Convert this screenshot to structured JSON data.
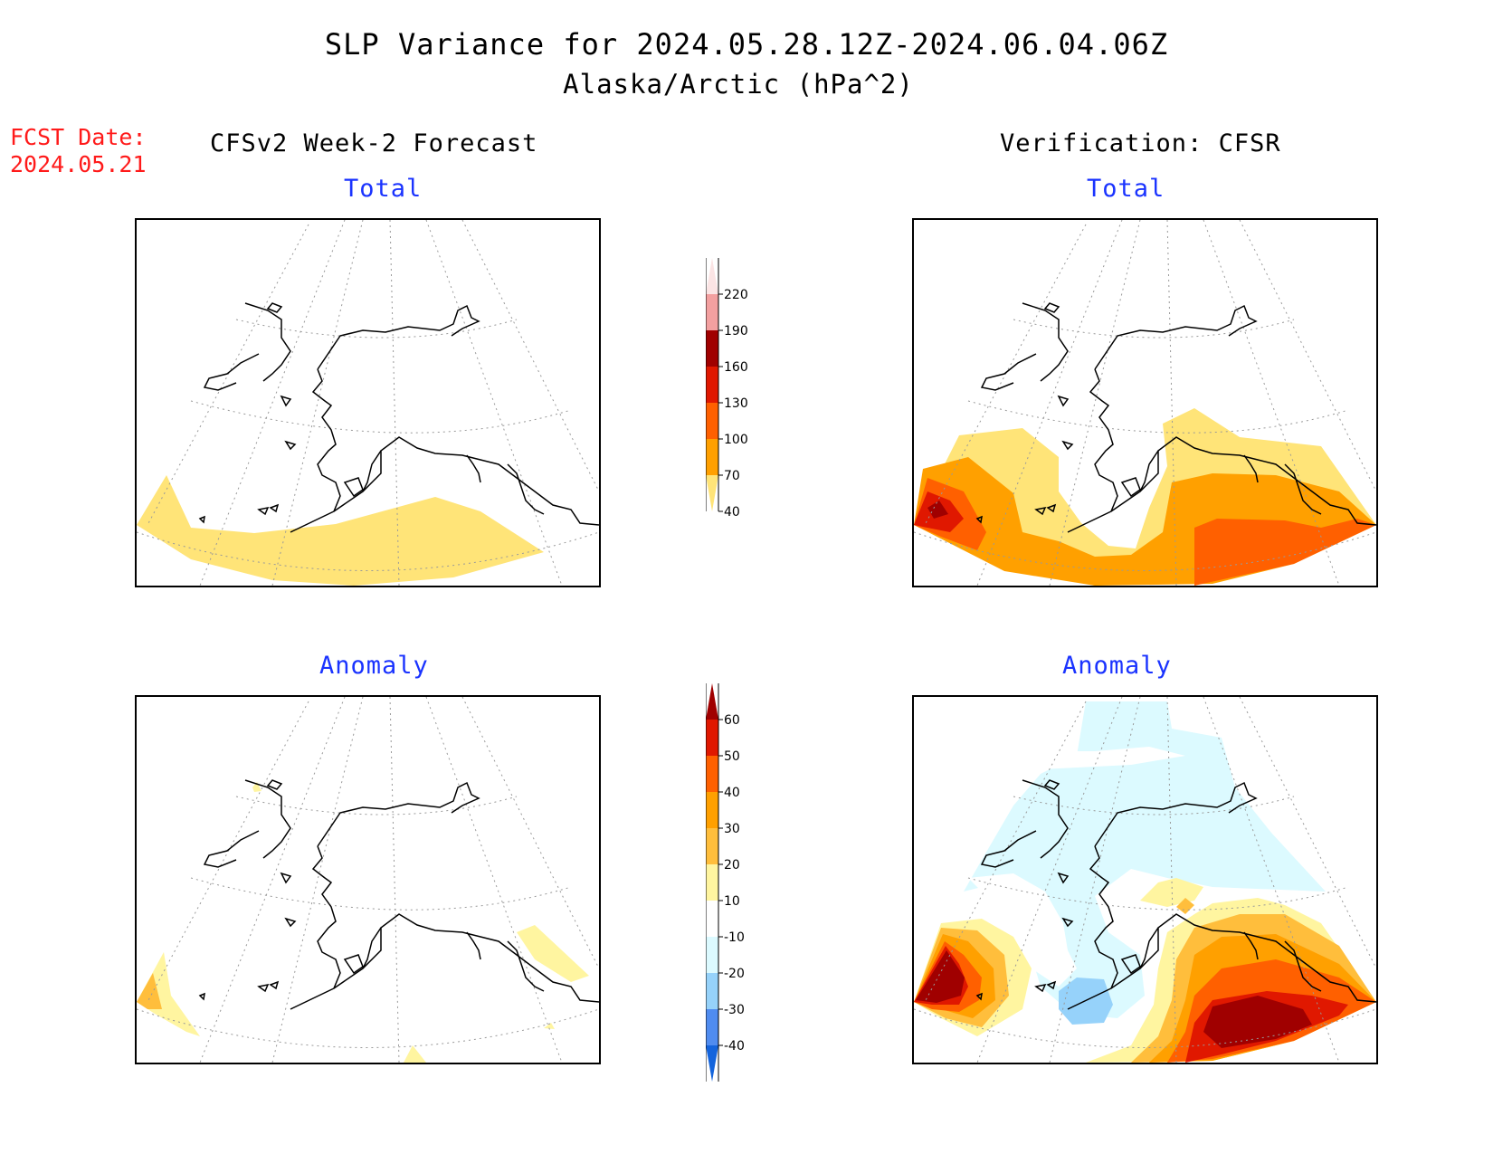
{
  "figure": {
    "title": "SLP Variance for 2024.05.28.12Z-2024.06.04.06Z",
    "subtitle": "Alaska/Arctic (hPa^2)",
    "forecast_date_label": "FCST Date:",
    "forecast_date": "2024.05.21",
    "left_header": "CFSv2 Week-2 Forecast",
    "right_header": "Verification: CFSR"
  },
  "panels": {
    "top_left": {
      "title": "Total"
    },
    "top_right": {
      "title": "Total"
    },
    "bottom_left": {
      "title": "Anomaly"
    },
    "bottom_right": {
      "title": "Anomaly"
    }
  },
  "colorbars": {
    "total": {
      "labels": [
        "220",
        "190",
        "160",
        "130",
        "100",
        "70",
        "40"
      ],
      "colors": [
        "#fbe4e4",
        "#f3a0a0",
        "#a00000",
        "#e01800",
        "#ff6000",
        "#ffa000",
        "#ffe478"
      ]
    },
    "anomaly": {
      "labels": [
        "60",
        "50",
        "40",
        "30",
        "20",
        "10",
        "-10",
        "-20",
        "-30",
        "-40"
      ],
      "colors": [
        "#a00000",
        "#e01800",
        "#ff6000",
        "#ffa000",
        "#ffbe3c",
        "#fff5a0",
        "#ffffff",
        "#dcfaff",
        "#96d2fa",
        "#508cf0",
        "#1464dc"
      ]
    }
  }
}
